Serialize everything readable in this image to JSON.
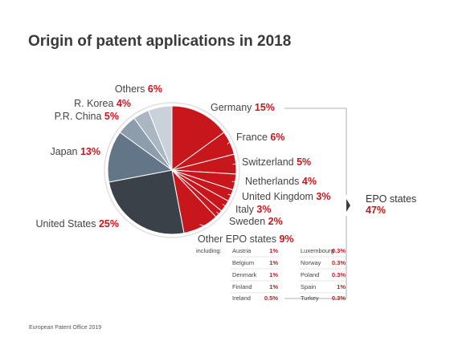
{
  "title": "Origin of patent applications in 2018",
  "footer": "European Patent Office 2019",
  "chart_data": {
    "type": "pie",
    "title": "Origin of patent applications in 2018",
    "unit": "%",
    "slices": [
      {
        "label": "Germany",
        "value": 15,
        "value_label": "15%",
        "color": "#c8161d",
        "group": "EPO"
      },
      {
        "label": "France",
        "value": 6,
        "value_label": "6%",
        "color": "#c8161d",
        "group": "EPO"
      },
      {
        "label": "Switzerland",
        "value": 5,
        "value_label": "5%",
        "color": "#c8161d",
        "group": "EPO"
      },
      {
        "label": "Netherlands",
        "value": 4,
        "value_label": "4%",
        "color": "#c8161d",
        "group": "EPO"
      },
      {
        "label": "United Kingdom",
        "value": 3,
        "value_label": "3%",
        "color": "#c8161d",
        "group": "EPO"
      },
      {
        "label": "Italy",
        "value": 3,
        "value_label": "3%",
        "color": "#c8161d",
        "group": "EPO"
      },
      {
        "label": "Sweden",
        "value": 2,
        "value_label": "2%",
        "color": "#c8161d",
        "group": "EPO"
      },
      {
        "label": "Other EPO states",
        "value": 9,
        "value_label": "9%",
        "color": "#c8161d",
        "group": "EPO"
      },
      {
        "label": "United States",
        "value": 25,
        "value_label": "25%",
        "color": "#3b4148"
      },
      {
        "label": "Japan",
        "value": 13,
        "value_label": "13%",
        "color": "#627688"
      },
      {
        "label": "P.R. China",
        "value": 5,
        "value_label": "5%",
        "color": "#8e9dac"
      },
      {
        "label": "R. Korea",
        "value": 4,
        "value_label": "4%",
        "color": "#aab6c2"
      },
      {
        "label": "Others",
        "value": 6,
        "value_label": "6%",
        "color": "#c9d1d9"
      }
    ],
    "group_bracket": {
      "label": "EPO states",
      "value_label": "47%"
    },
    "breakdown": {
      "label": "including:",
      "rows": [
        {
          "a": "Austria",
          "av": "1%",
          "b": "Luxembourg",
          "bv": "0.3%"
        },
        {
          "a": "Belgium",
          "av": "1%",
          "b": "Norway",
          "bv": "0.3%"
        },
        {
          "a": "Denmark",
          "av": "1%",
          "b": "Poland",
          "bv": "0.3%"
        },
        {
          "a": "Finland",
          "av": "1%",
          "b": "Spain",
          "bv": "1%"
        },
        {
          "a": "Ireland",
          "av": "0.5%",
          "b": "Turkey",
          "bv": "0.3%"
        }
      ]
    }
  }
}
